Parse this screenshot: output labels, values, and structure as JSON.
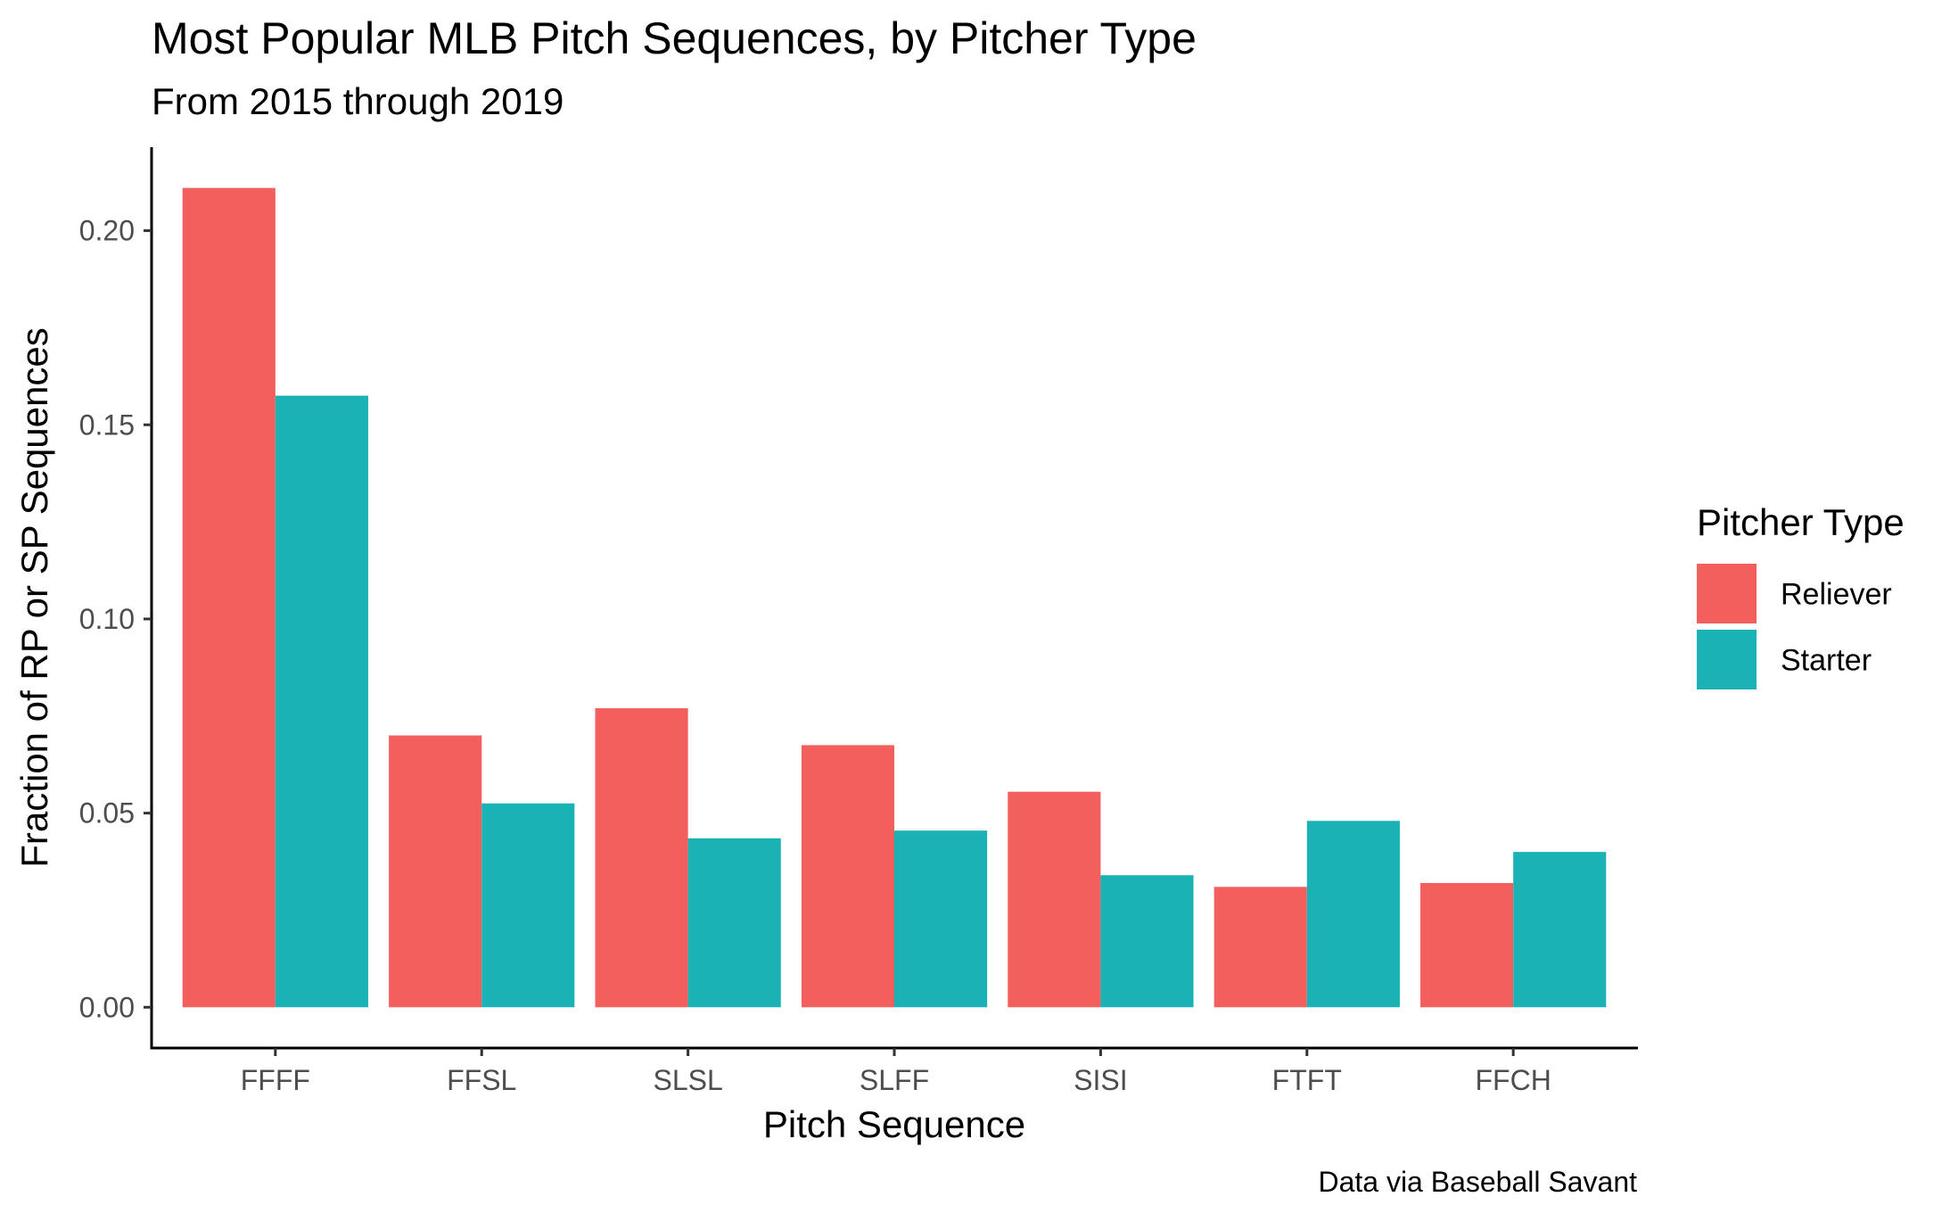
{
  "chart_data": {
    "type": "bar",
    "title": "Most Popular MLB Pitch Sequences, by Pitcher Type",
    "subtitle": "From 2015 through 2019",
    "xlabel": "Pitch Sequence",
    "ylabel": "Fraction of RP or SP Sequences",
    "caption": "Data via Baseball Savant",
    "categories": [
      "FFFF",
      "FFSL",
      "SLSL",
      "SLFF",
      "SISI",
      "FTFT",
      "FFCH"
    ],
    "series": [
      {
        "name": "Reliever",
        "color": "#F25F5C",
        "values": [
          0.211,
          0.07,
          0.077,
          0.0675,
          0.0555,
          0.031,
          0.032
        ]
      },
      {
        "name": "Starter",
        "color": "#1AB2B5",
        "values": [
          0.1575,
          0.0525,
          0.0435,
          0.0455,
          0.034,
          0.048,
          0.04
        ]
      }
    ],
    "ylim": [
      -0.0105,
      0.2215
    ],
    "yticks": [
      0.0,
      0.05,
      0.1,
      0.15,
      0.2
    ],
    "ytick_labels": [
      "0.00",
      "0.05",
      "0.10",
      "0.15",
      "0.20"
    ],
    "grid": false,
    "legend": {
      "title": "Pitcher Type",
      "position": "right",
      "entries": [
        "Reliever",
        "Starter"
      ]
    }
  }
}
